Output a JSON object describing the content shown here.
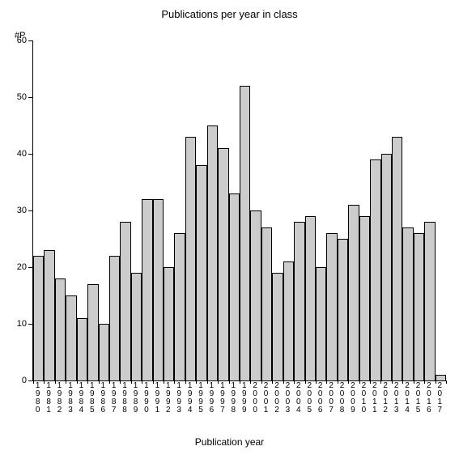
{
  "chart": {
    "type": "bar",
    "title": "Publications per year in class",
    "y_axis_label": "#P",
    "x_axis_label": "Publication year",
    "ylim": [
      0,
      60
    ],
    "ytick_step": 10,
    "yticks": [
      0,
      10,
      20,
      30,
      40,
      50,
      60
    ],
    "categories": [
      "1980",
      "1981",
      "1982",
      "1983",
      "1984",
      "1985",
      "1986",
      "1987",
      "1988",
      "1989",
      "1990",
      "1991",
      "1992",
      "1993",
      "1994",
      "1995",
      "1996",
      "1997",
      "1998",
      "1999",
      "2000",
      "2001",
      "2002",
      "2003",
      "2004",
      "2005",
      "2006",
      "2007",
      "2008",
      "2009",
      "2010",
      "2011",
      "2012",
      "2013",
      "2014",
      "2015",
      "2016",
      "2017"
    ],
    "values": [
      22,
      23,
      18,
      15,
      11,
      17,
      10,
      22,
      28,
      19,
      32,
      32,
      20,
      26,
      43,
      38,
      45,
      41,
      33,
      52,
      30,
      27,
      19,
      21,
      28,
      29,
      20,
      26,
      25,
      31,
      29,
      39,
      40,
      43,
      27,
      26,
      28,
      1
    ],
    "bar_fill": "#cccccc",
    "bar_border": "#000000",
    "bar_border_width": 1,
    "bar_width_ratio": 1.0,
    "background_color": "#ffffff",
    "axis_color": "#000000",
    "title_fontsize": 13,
    "label_fontsize": 12,
    "tick_fontsize": 11,
    "xtick_fontsize": 10
  }
}
